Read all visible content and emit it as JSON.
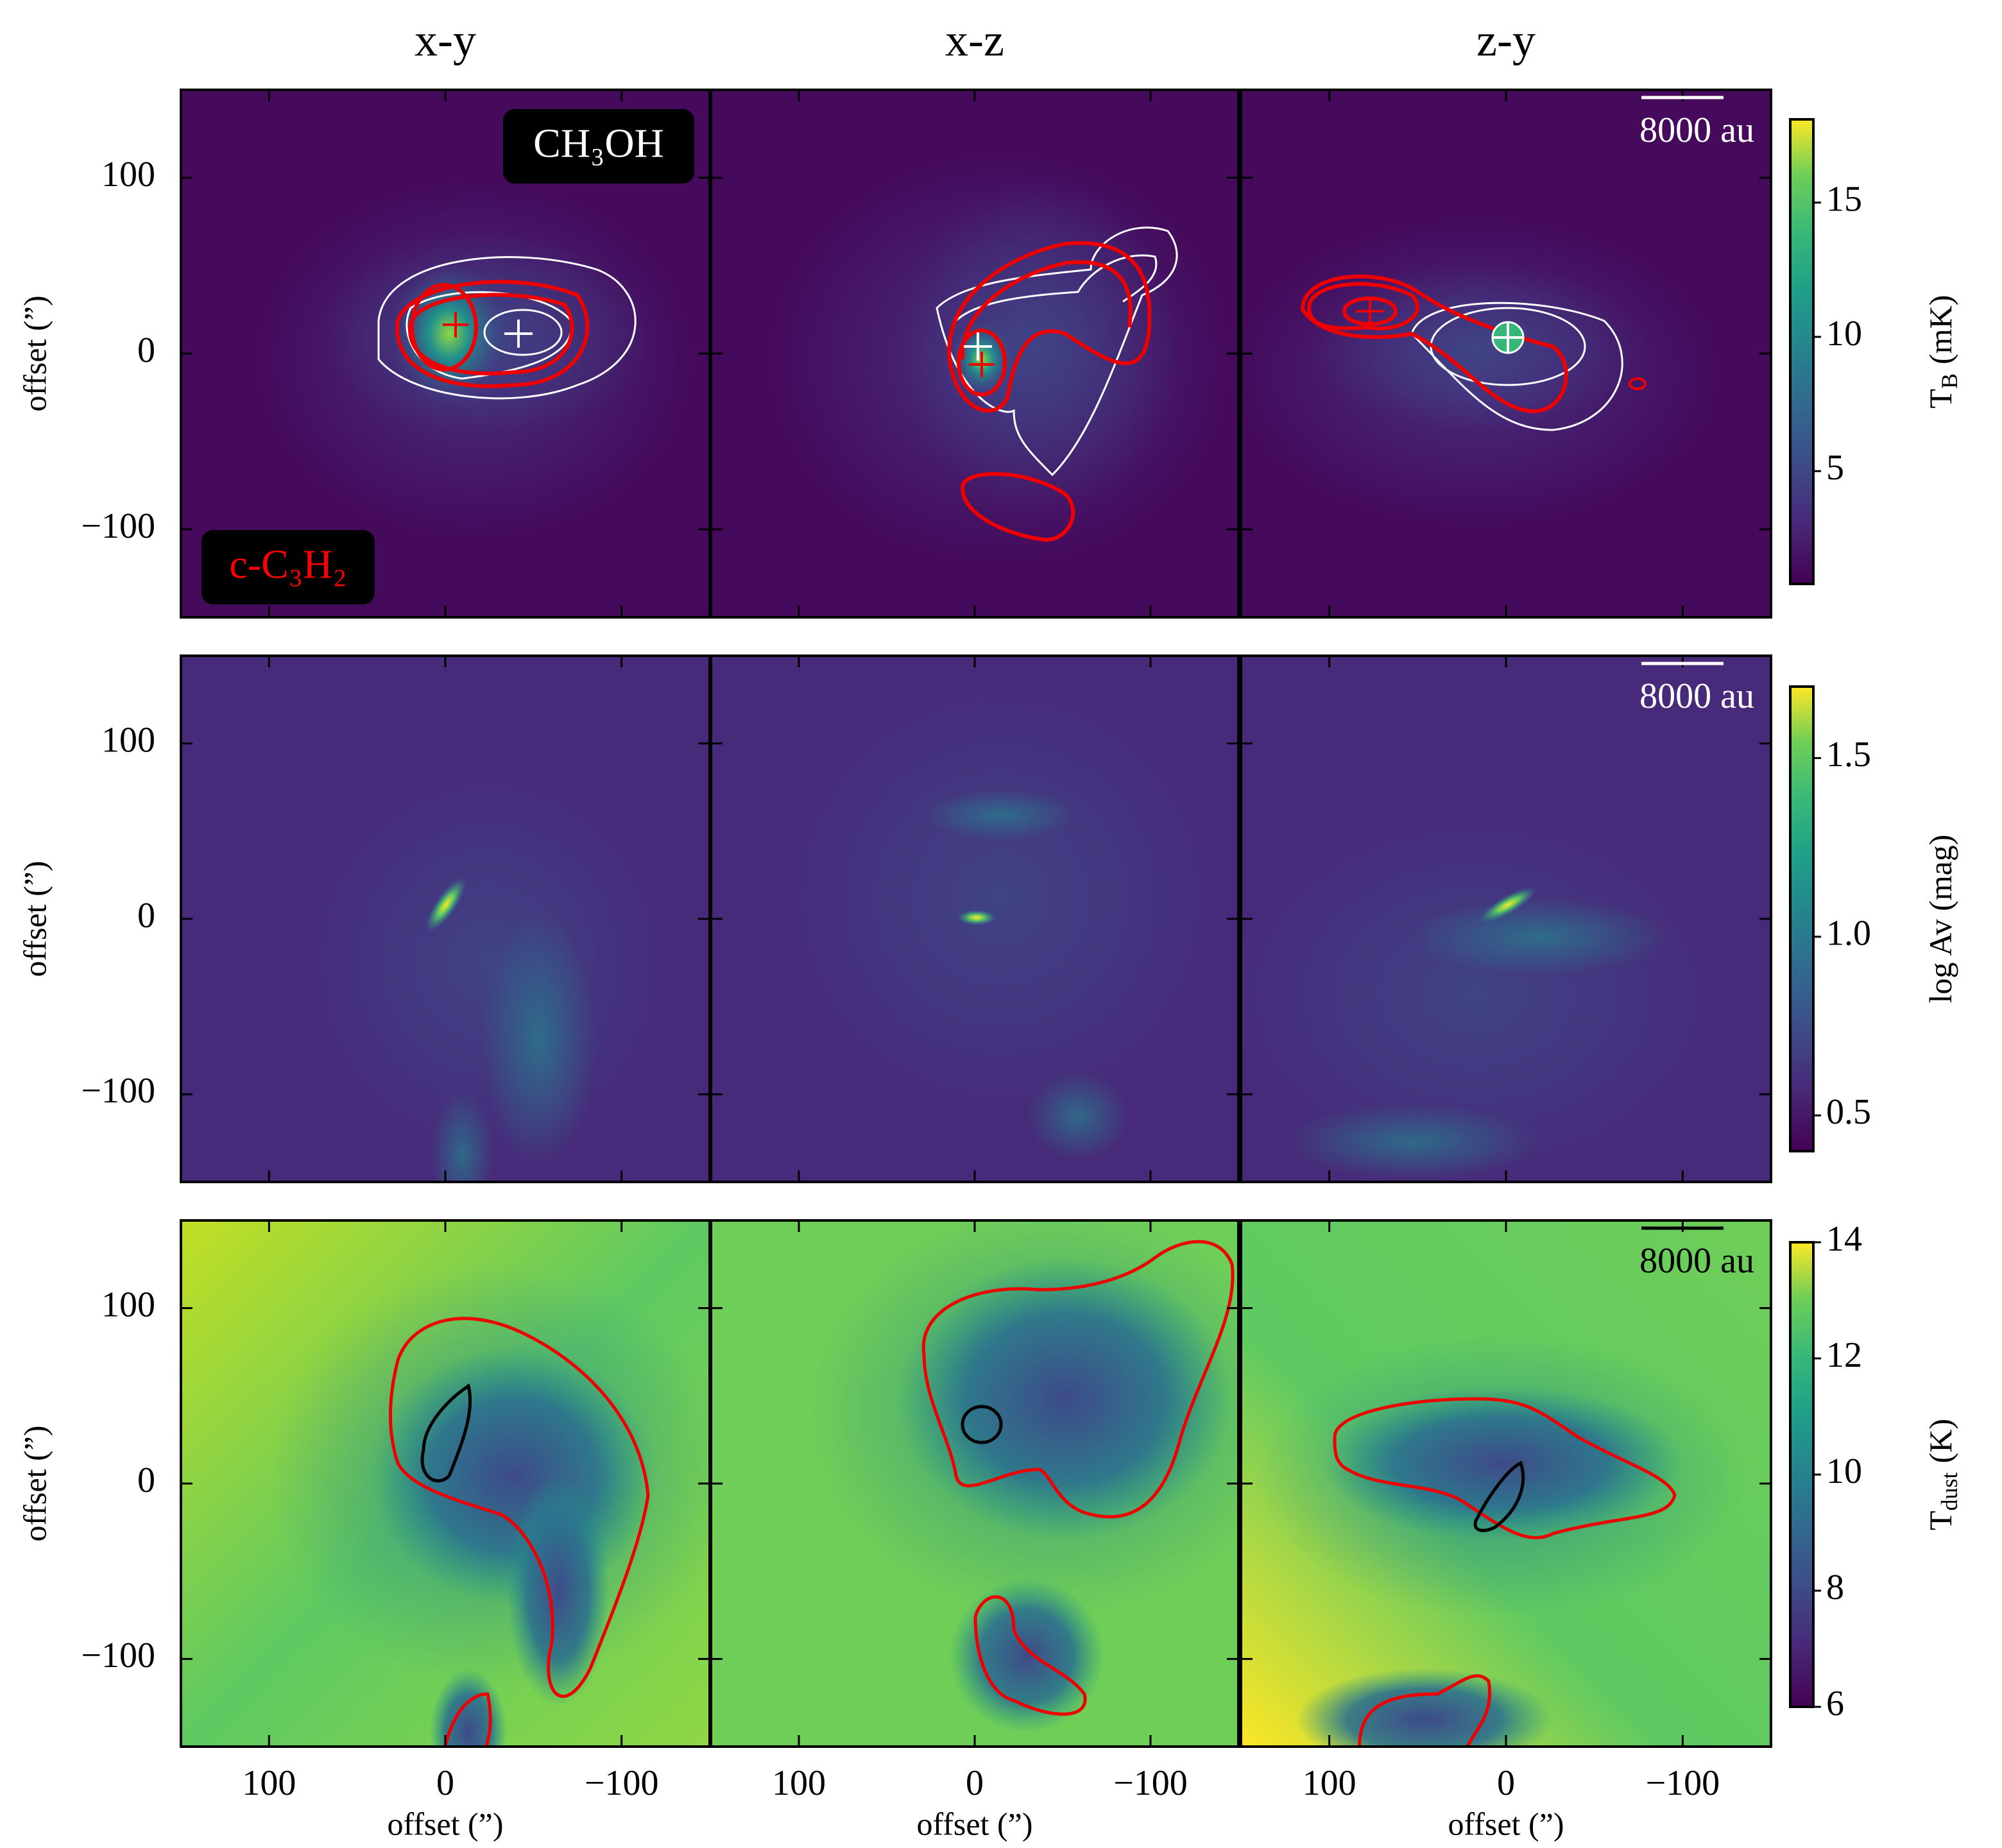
{
  "chart_data": {
    "type": "image-grid",
    "column_titles": [
      "x-y",
      "x-z",
      "z-y"
    ],
    "xlabel": "offset (”)",
    "ylabel": "offset (”)",
    "xlim": [
      150,
      -150
    ],
    "ylim": [
      -150,
      150
    ],
    "xticks": [
      100,
      0,
      {
        "value": -100,
        "label": "−100"
      }
    ],
    "yticks": [
      {
        "value": -100,
        "label": "−100"
      },
      0,
      100
    ],
    "annotations": [
      {
        "text": "CH₃OH",
        "color": "#ffffff"
      },
      {
        "text": "c-C₃H₂",
        "color": "#ff0000"
      }
    ],
    "scale_bars": [
      {
        "label": "8000 au",
        "color": "#ffffff"
      },
      {
        "label": "8000 au",
        "color": "#ffffff"
      },
      {
        "label": "8000 au",
        "color": "#000000"
      }
    ],
    "colorbars": [
      {
        "label": [
          {
            "text": "T"
          },
          {
            "text": "B",
            "sub": true
          },
          {
            "text": "(mK)"
          }
        ],
        "clim": [
          0.8,
          18.1
        ],
        "ticks": [
          5,
          10,
          15
        ],
        "colormap": "viridis"
      },
      {
        "label": [
          {
            "text": "log Av (mag)"
          }
        ],
        "clim": [
          0.4,
          1.7
        ],
        "ticks": [
          0.5,
          {
            "value": 1,
            "label": "1.0"
          },
          1.5
        ],
        "colormap": "viridis"
      },
      {
        "label": [
          {
            "text": "T"
          },
          {
            "text": "dust",
            "sub": true
          },
          {
            "text": "(K)"
          }
        ],
        "clim": [
          6,
          14
        ],
        "ticks": [
          6,
          8,
          10,
          12,
          14
        ],
        "colormap": "viridis"
      }
    ]
  }
}
